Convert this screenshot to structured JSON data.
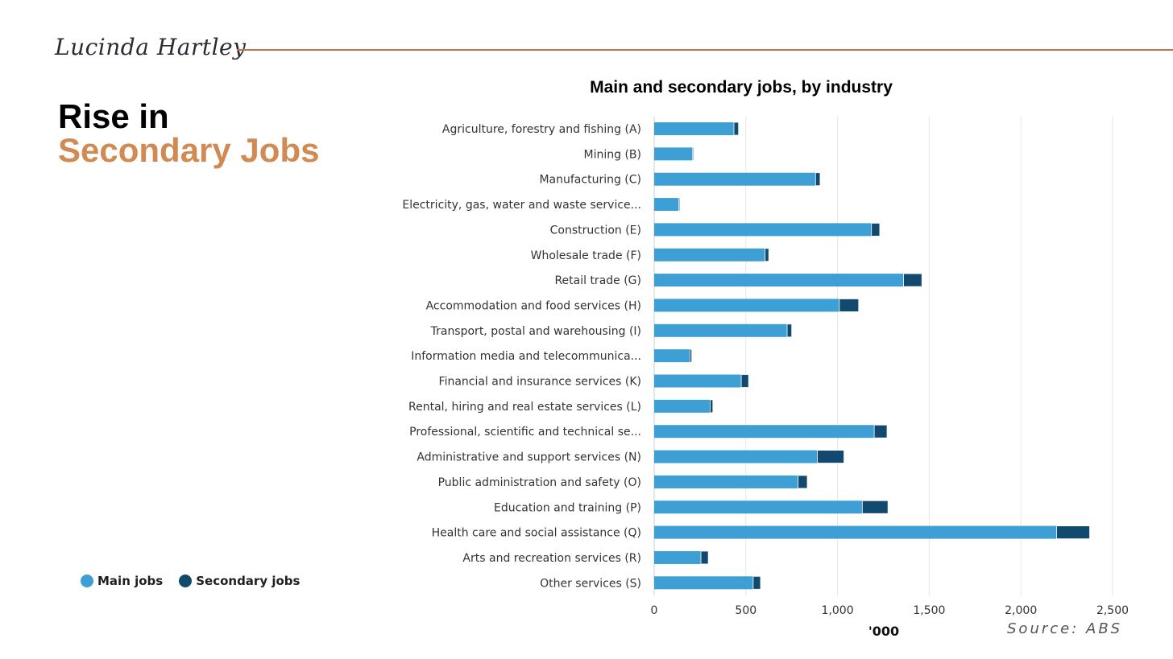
{
  "brand": {
    "signature": "Lucinda Hartley"
  },
  "headline": {
    "line1": "Rise in",
    "line2": "Secondary Jobs"
  },
  "legend": {
    "main_label": "Main jobs",
    "secondary_label": "Secondary jobs"
  },
  "colors": {
    "main": "#3d9fd3",
    "secondary": "#12496f",
    "rule": "#b8754f",
    "accent": "#d08a52"
  },
  "source": "Source:  ABS",
  "chart_data": {
    "type": "bar",
    "orientation": "horizontal",
    "stacked": true,
    "title": "Main and secondary jobs, by industry",
    "xlabel": "'000",
    "ylabel": "",
    "xlim": [
      0,
      2500
    ],
    "xticks": [
      0,
      500,
      1000,
      1500,
      2000,
      2500
    ],
    "xtick_labels": [
      "0",
      "500",
      "1,000",
      "1,500",
      "2,000",
      "2,500"
    ],
    "grid": true,
    "categories": [
      "Agriculture, forestry and fishing (A)",
      "Mining (B)",
      "Manufacturing (C)",
      "Electricity, gas, water and waste service...",
      "Construction (E)",
      "Wholesale trade (F)",
      "Retail trade (G)",
      "Accommodation and food services (H)",
      "Transport, postal and warehousing (I)",
      "Information media and telecommunica...",
      "Financial and insurance services (K)",
      "Rental, hiring and real estate services (L)",
      "Professional, scientific and technical se...",
      "Administrative and support services (N)",
      "Public administration and safety (O)",
      "Education and training (P)",
      "Health care and social assistance (Q)",
      "Arts and recreation services (R)",
      "Other services (S)"
    ],
    "series": [
      {
        "name": "Main jobs",
        "values": [
          435,
          210,
          880,
          135,
          1185,
          605,
          1360,
          1010,
          725,
          195,
          475,
          305,
          1200,
          890,
          785,
          1135,
          2195,
          255,
          540
        ]
      },
      {
        "name": "Secondary jobs",
        "values": [
          25,
          5,
          25,
          5,
          45,
          20,
          100,
          105,
          25,
          10,
          40,
          15,
          70,
          145,
          50,
          140,
          180,
          40,
          40
        ]
      }
    ]
  }
}
